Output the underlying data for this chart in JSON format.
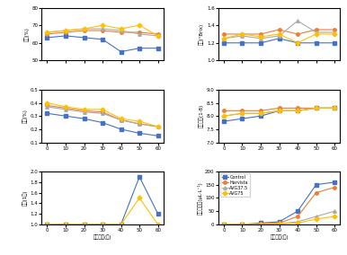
{
  "x": [
    0,
    10,
    20,
    30,
    40,
    50,
    60
  ],
  "colors": {
    "Control": "#4472C4",
    "Harvista": "#ED7D31",
    "AVG37.5": "#A9A9A9",
    "AVG75": "#FFC000"
  },
  "markers": {
    "Control": "s",
    "Harvista": "o",
    "AVG37.5": "^",
    "AVG75": "D"
  },
  "plot1_ylabel": "경도(%)",
  "plot1_ylim": [
    50,
    80
  ],
  "plot1_yticks": [
    50,
    60,
    70,
    80
  ],
  "plot1_data": {
    "Control": [
      63,
      64,
      63,
      62,
      55,
      57,
      57
    ],
    "Harvista": [
      65,
      66,
      67,
      67,
      66,
      66,
      65
    ],
    "AVG37.5": [
      66,
      67,
      68,
      68,
      67,
      65,
      64
    ],
    "AVG75": [
      66,
      67,
      68,
      70,
      68,
      70,
      64
    ]
  },
  "plot2_ylabel": "당도(°Brix)",
  "plot2_ylim": [
    1.0,
    1.6
  ],
  "plot2_yticks": [
    1.0,
    1.2,
    1.4,
    1.6
  ],
  "plot2_data": {
    "Control": [
      1.2,
      1.2,
      1.2,
      1.25,
      1.2,
      1.2,
      1.2
    ],
    "Harvista": [
      1.3,
      1.3,
      1.3,
      1.35,
      1.3,
      1.35,
      1.35
    ],
    "AVG37.5": [
      1.25,
      1.28,
      1.25,
      1.28,
      1.45,
      1.32,
      1.32
    ],
    "AVG75": [
      1.25,
      1.3,
      1.27,
      1.3,
      1.2,
      1.3,
      1.3
    ]
  },
  "plot3_ylabel": "산도(%)",
  "plot3_ylim": [
    0.1,
    0.5
  ],
  "plot3_yticks": [
    0.1,
    0.2,
    0.3,
    0.4,
    0.5
  ],
  "plot3_data": {
    "Control": [
      0.32,
      0.3,
      0.28,
      0.25,
      0.2,
      0.17,
      0.15
    ],
    "Harvista": [
      0.38,
      0.36,
      0.34,
      0.33,
      0.27,
      0.24,
      0.22
    ],
    "AVG37.5": [
      0.37,
      0.35,
      0.33,
      0.32,
      0.27,
      0.24,
      0.22
    ],
    "AVG75": [
      0.4,
      0.37,
      0.35,
      0.35,
      0.28,
      0.26,
      0.22
    ]
  },
  "plot4_ylabel": "전분지수(1-8)",
  "plot4_ylim": [
    7.0,
    9.0
  ],
  "plot4_yticks": [
    7.0,
    7.5,
    8.0,
    8.5,
    9.0
  ],
  "plot4_data": {
    "Control": [
      7.8,
      7.9,
      8.0,
      8.2,
      8.2,
      8.3,
      8.3
    ],
    "Harvista": [
      8.2,
      8.2,
      8.2,
      8.3,
      8.3,
      8.3,
      8.3
    ],
    "AVG37.5": [
      8.0,
      8.1,
      8.1,
      8.2,
      8.2,
      8.3,
      8.3
    ],
    "AVG75": [
      8.0,
      8.1,
      8.1,
      8.2,
      8.2,
      8.3,
      8.3
    ]
  },
  "plot5_ylabel": "낙과(1년)",
  "plot5_ylim": [
    1.0,
    2.0
  ],
  "plot5_yticks": [
    1.0,
    1.2,
    1.4,
    1.6,
    1.8,
    2.0
  ],
  "plot5_data": {
    "Control": [
      1.0,
      1.0,
      1.0,
      1.0,
      1.0,
      1.9,
      1.2
    ],
    "Harvista": [
      null,
      null,
      null,
      null,
      null,
      null,
      null
    ],
    "AVG37.5": [
      null,
      null,
      null,
      null,
      null,
      null,
      null
    ],
    "AVG75": [
      1.0,
      1.0,
      1.0,
      1.0,
      1.0,
      1.5,
      1.0
    ]
  },
  "plot6_ylabel": "에틸렌발생(μL·L⁻¹)",
  "plot6_ylim": [
    0,
    200
  ],
  "plot6_yticks": [
    0,
    50,
    100,
    150,
    200
  ],
  "plot6_data": {
    "Control": [
      0,
      0,
      5,
      10,
      50,
      150,
      160
    ],
    "Harvista": [
      0,
      0,
      2,
      5,
      30,
      120,
      140
    ],
    "AVG37.5": [
      0,
      0,
      1,
      2,
      10,
      30,
      50
    ],
    "AVG75": [
      0,
      0,
      1,
      2,
      5,
      20,
      30
    ]
  },
  "xlabel": "저장기간(일)",
  "legend_labels": [
    "Control",
    "Harvista",
    "AVG37.5",
    "AVG75"
  ],
  "legend_colors": [
    "#4472C4",
    "#ED7D31",
    "#A9A9A9",
    "#FFC000"
  ]
}
